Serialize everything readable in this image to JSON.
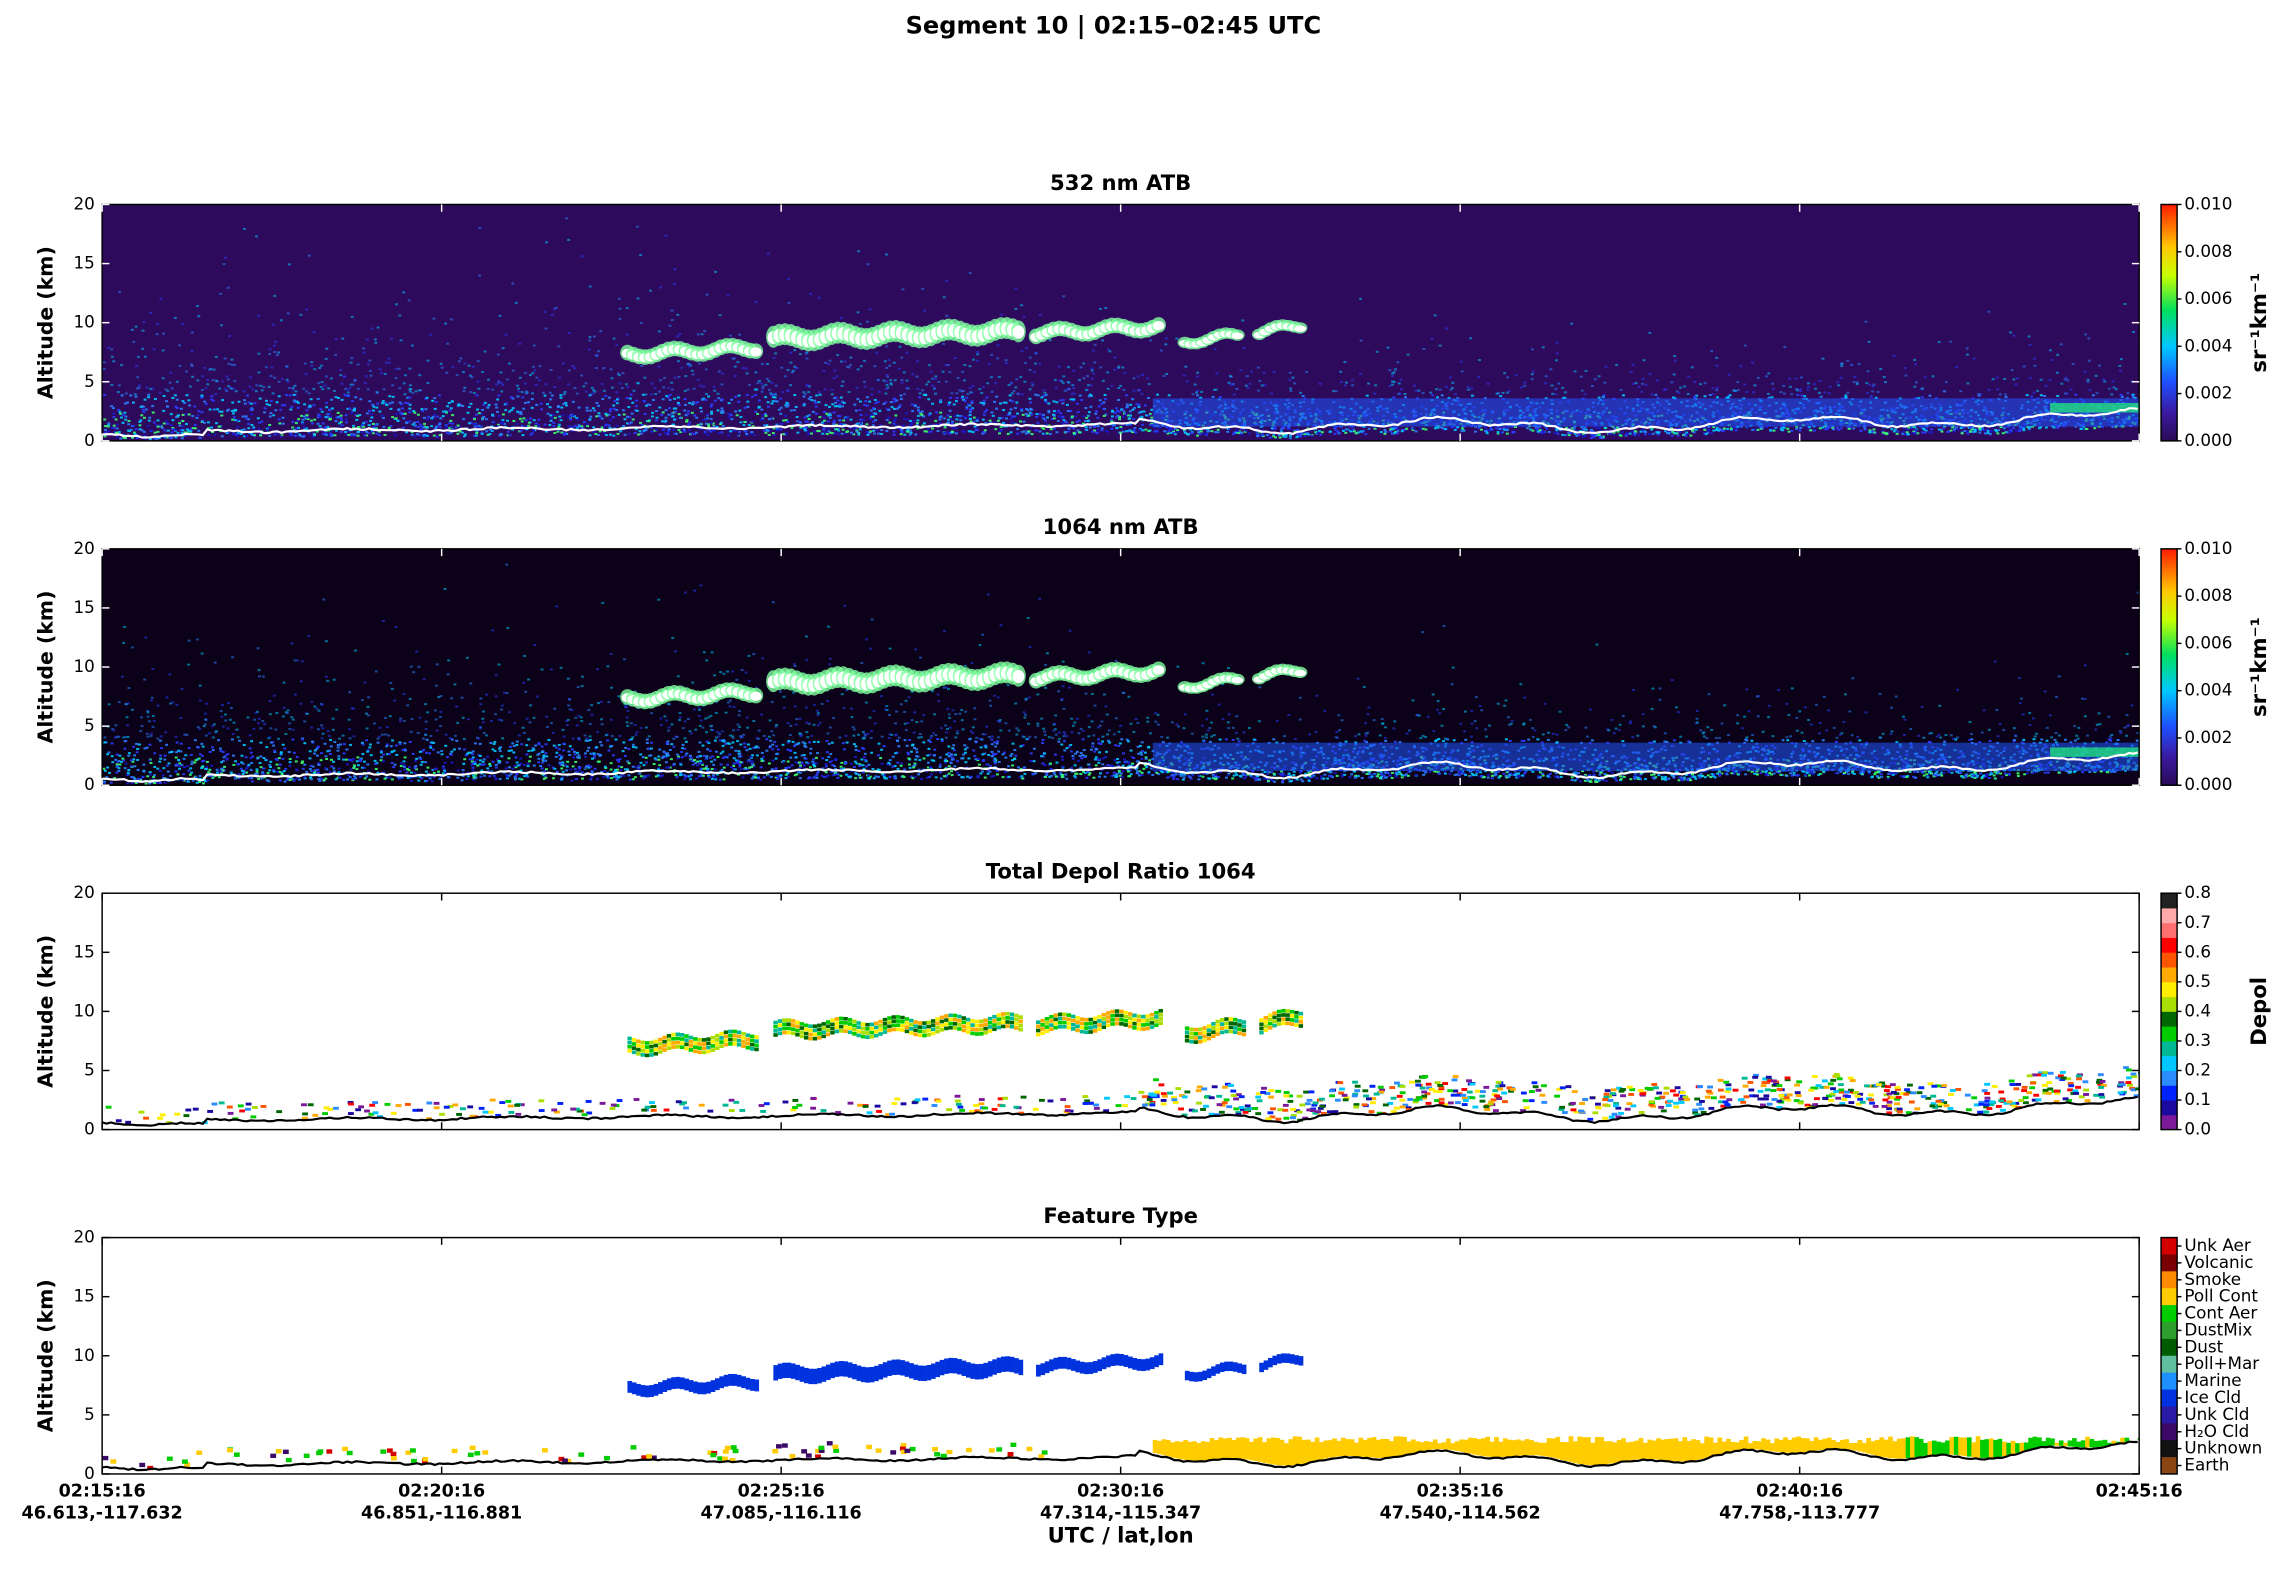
{
  "suptitle": "Segment 10  |  02:15–02:45 UTC",
  "chart_data": [
    {
      "type": "heatmap",
      "title": "532 nm ATB",
      "ylabel": "Altitude (km)",
      "ylim": [
        0,
        20
      ],
      "yticks": [
        0,
        5,
        10,
        15,
        20
      ],
      "xlim": [
        0,
        30
      ],
      "xticks": [
        0,
        5,
        10,
        15,
        20,
        25,
        30
      ],
      "colormap": "atb",
      "background": "#2e0a5c",
      "colorbar": {
        "label": "sr⁻¹km⁻¹",
        "lim": [
          0,
          0.01
        ],
        "ticks": [
          {
            "value": 0,
            "label": "0.000"
          },
          {
            "value": 0.002,
            "label": "0.002"
          },
          {
            "value": 0.004,
            "label": "0.004"
          },
          {
            "value": 0.006,
            "label": "0.006"
          },
          {
            "value": 0.008,
            "label": "0.008"
          },
          {
            "value": 0.01,
            "label": "0.010"
          }
        ]
      }
    },
    {
      "type": "heatmap",
      "title": "1064 nm ATB",
      "ylabel": "Altitude (km)",
      "ylim": [
        0,
        20
      ],
      "yticks": [
        0,
        5,
        10,
        15,
        20
      ],
      "xlim": [
        0,
        30
      ],
      "xticks": [
        0,
        5,
        10,
        15,
        20,
        25,
        30
      ],
      "colormap": "atb",
      "background": "#0b0118",
      "colorbar": {
        "label": "sr⁻¹km⁻¹",
        "lim": [
          0,
          0.01
        ],
        "ticks": [
          {
            "value": 0,
            "label": "0.000"
          },
          {
            "value": 0.002,
            "label": "0.002"
          },
          {
            "value": 0.004,
            "label": "0.004"
          },
          {
            "value": 0.006,
            "label": "0.006"
          },
          {
            "value": 0.008,
            "label": "0.008"
          },
          {
            "value": 0.01,
            "label": "0.010"
          }
        ]
      }
    },
    {
      "type": "heatmap",
      "title": "Total Depol Ratio 1064",
      "ylabel": "Altitude (km)",
      "ylim": [
        0,
        20
      ],
      "yticks": [
        0,
        5,
        10,
        15,
        20
      ],
      "xlim": [
        0,
        30
      ],
      "xticks": [
        0,
        5,
        10,
        15,
        20,
        25,
        30
      ],
      "colormap": "depol",
      "background": "#ffffff",
      "colorbar": {
        "label": "Depol",
        "lim": [
          0,
          0.8
        ],
        "ticks": [
          {
            "value": 0,
            "label": "0.0"
          },
          {
            "value": 0.1,
            "label": "0.1"
          },
          {
            "value": 0.2,
            "label": "0.2"
          },
          {
            "value": 0.3,
            "label": "0.3"
          },
          {
            "value": 0.4,
            "label": "0.4"
          },
          {
            "value": 0.5,
            "label": "0.5"
          },
          {
            "value": 0.6,
            "label": "0.6"
          },
          {
            "value": 0.7,
            "label": "0.7"
          },
          {
            "value": 0.8,
            "label": "0.8"
          }
        ]
      }
    },
    {
      "type": "heatmap",
      "title": "Feature Type",
      "ylabel": "Altitude (km)",
      "xlabel": "UTC / lat,lon",
      "ylim": [
        0,
        20
      ],
      "yticks": [
        0,
        5,
        10,
        15,
        20
      ],
      "xlim": [
        0,
        30
      ],
      "xticks": [
        {
          "value": 0,
          "label": "02:15:16"
        },
        {
          "value": 5,
          "label": "02:20:16"
        },
        {
          "value": 10,
          "label": "02:25:16"
        },
        {
          "value": 15,
          "label": "02:30:16"
        },
        {
          "value": 20,
          "label": "02:35:16"
        },
        {
          "value": 25,
          "label": "02:40:16"
        },
        {
          "value": 30,
          "label": "02:45:16"
        }
      ],
      "xtick_sublabels": [
        "46.613,-117.632",
        "46.851,-116.881",
        "47.085,-116.116",
        "47.314,-115.347",
        "47.540,-114.562",
        "47.758,-113.777",
        ""
      ],
      "colormap": "feature",
      "background": "#ffffff",
      "classes": [
        {
          "name": "Unk Aer",
          "color": "#d40000"
        },
        {
          "name": "Volcanic",
          "color": "#7a0000"
        },
        {
          "name": "Smoke",
          "color": "#ff8c00"
        },
        {
          "name": "Poll Cont",
          "color": "#ffcc00"
        },
        {
          "name": "Cont Aer",
          "color": "#00cc00"
        },
        {
          "name": "DustMix",
          "color": "#2e9e2e"
        },
        {
          "name": "Dust",
          "color": "#005c00"
        },
        {
          "name": "Poll+Mar",
          "color": "#5fbf9f"
        },
        {
          "name": "Marine",
          "color": "#1e90ff"
        },
        {
          "name": "Ice Cld",
          "color": "#0033dd"
        },
        {
          "name": "Unk Cld",
          "color": "#2a1aa8"
        },
        {
          "name": "H₂O Cld",
          "color": "#3a0a66"
        },
        {
          "name": "Unknown",
          "color": "#111111"
        },
        {
          "name": "Earth",
          "color": "#8b4513"
        }
      ]
    }
  ]
}
